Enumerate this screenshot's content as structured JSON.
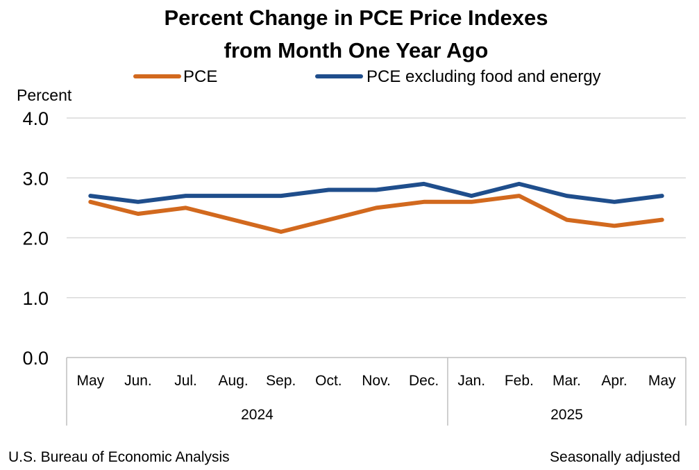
{
  "chart_data": {
    "type": "line",
    "title_line1": "Percent Change in PCE Price Indexes",
    "title_line2": "from Month One Year Ago",
    "ylabel": "Percent",
    "ylim": [
      0,
      4
    ],
    "yticks": [
      "4.0",
      "3.0",
      "2.0",
      "1.0",
      "0.0"
    ],
    "grid": true,
    "legend_position": "top",
    "categories": [
      "May",
      "Jun.",
      "Jul.",
      "Aug.",
      "Sep.",
      "Oct.",
      "Nov.",
      "Dec.",
      "Jan.",
      "Feb.",
      "Mar.",
      "Apr.",
      "May"
    ],
    "year_groups": [
      {
        "label": "2024",
        "count": 8
      },
      {
        "label": "2025",
        "count": 5
      }
    ],
    "series": [
      {
        "name": "PCE",
        "color": "#d2691e",
        "values": [
          2.6,
          2.4,
          2.5,
          2.3,
          2.1,
          2.3,
          2.5,
          2.6,
          2.6,
          2.7,
          2.3,
          2.2,
          2.3
        ]
      },
      {
        "name": "PCE excluding food and energy",
        "color": "#1f4e8c",
        "values": [
          2.7,
          2.6,
          2.7,
          2.7,
          2.7,
          2.8,
          2.8,
          2.9,
          2.7,
          2.9,
          2.7,
          2.6,
          2.7
        ]
      }
    ]
  },
  "footer": {
    "source": "U.S. Bureau of Economic Analysis",
    "note": "Seasonally adjusted"
  },
  "colors": {
    "gridline": "#d9d9d9",
    "axis": "#bfbfbf"
  }
}
